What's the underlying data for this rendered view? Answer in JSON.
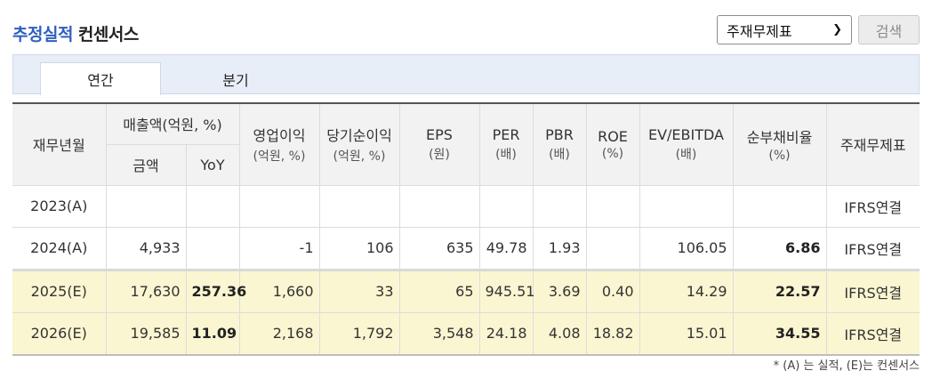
{
  "title": {
    "blue": "추정실적",
    "dark": "컨센서스"
  },
  "select": {
    "value": "주재무제표"
  },
  "search_label": "검색",
  "tabs": [
    {
      "label": "연간"
    },
    {
      "label": "분기"
    }
  ],
  "headers": {
    "year": "재무년월",
    "sales_group": "매출액(억원, %)",
    "sales_amount": "금액",
    "sales_yoy": "YoY",
    "op": {
      "label": "영업이익",
      "unit": "(억원, %)"
    },
    "net": {
      "label": "당기순이익",
      "unit": "(억원, %)"
    },
    "eps": {
      "label": "EPS",
      "unit": "(원)"
    },
    "per": {
      "label": "PER",
      "unit": "(배)"
    },
    "pbr": {
      "label": "PBR",
      "unit": "(배)"
    },
    "roe": {
      "label": "ROE",
      "unit": "(%)"
    },
    "ev": {
      "label": "EV/EBITDA",
      "unit": "(배)"
    },
    "debt": {
      "label": "순부채비율",
      "unit": "(%)"
    },
    "fs": "주재무제표"
  },
  "rows": [
    {
      "year": "2023(A)",
      "amount": "",
      "yoy": "",
      "op": "",
      "net": "",
      "eps": "",
      "per": "",
      "pbr": "",
      "roe": "",
      "ev": "",
      "debt": "",
      "fs": "IFRS연결"
    },
    {
      "year": "2024(A)",
      "amount": "4,933",
      "yoy": "",
      "op": "-1",
      "net": "106",
      "eps": "635",
      "per": "49.78",
      "pbr": "1.93",
      "roe": "",
      "ev": "106.05",
      "debt": "6.86",
      "fs": "IFRS연결"
    },
    {
      "year": "2025(E)",
      "amount": "17,630",
      "yoy": "257.36",
      "op": "1,660",
      "net": "33",
      "eps": "65",
      "per": "945.51",
      "pbr": "3.69",
      "roe": "0.40",
      "ev": "14.29",
      "debt": "22.57",
      "fs": "IFRS연결"
    },
    {
      "year": "2026(E)",
      "amount": "19,585",
      "yoy": "11.09",
      "op": "2,168",
      "net": "1,792",
      "eps": "3,548",
      "per": "24.18",
      "pbr": "4.08",
      "roe": "18.82",
      "ev": "15.01",
      "debt": "34.55",
      "fs": "IFRS연결"
    }
  ],
  "note": "* (A) 는 실적, (E)는 컨센서스"
}
